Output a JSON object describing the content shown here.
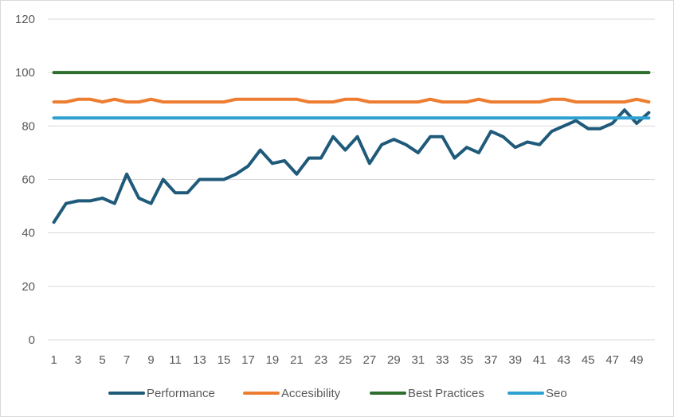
{
  "chart_data": {
    "type": "line",
    "title": "",
    "xlabel": "",
    "ylabel": "",
    "ylim": [
      0,
      120
    ],
    "yticks": [
      0,
      20,
      40,
      60,
      80,
      100,
      120
    ],
    "x": [
      1,
      2,
      3,
      4,
      5,
      6,
      7,
      8,
      9,
      10,
      11,
      12,
      13,
      14,
      15,
      16,
      17,
      18,
      19,
      20,
      21,
      22,
      23,
      24,
      25,
      26,
      27,
      28,
      29,
      30,
      31,
      32,
      33,
      34,
      35,
      36,
      37,
      38,
      39,
      40,
      41,
      42,
      43,
      44,
      45,
      46,
      47,
      48,
      49,
      50
    ],
    "xtick_labels": [
      "1",
      "3",
      "5",
      "7",
      "9",
      "11",
      "13",
      "15",
      "17",
      "19",
      "21",
      "23",
      "25",
      "27",
      "29",
      "31",
      "33",
      "35",
      "37",
      "39",
      "41",
      "43",
      "45",
      "47",
      "49"
    ],
    "grid": true,
    "legend_position": "bottom",
    "series": [
      {
        "name": "Performance",
        "color": "#1f5a7a",
        "values": [
          44,
          51,
          52,
          52,
          53,
          51,
          62,
          53,
          51,
          60,
          55,
          55,
          60,
          60,
          60,
          62,
          65,
          71,
          66,
          67,
          62,
          68,
          68,
          76,
          71,
          76,
          66,
          73,
          75,
          73,
          70,
          76,
          76,
          68,
          72,
          70,
          78,
          76,
          72,
          74,
          73,
          78,
          80,
          82,
          79,
          79,
          81,
          86,
          81,
          85
        ]
      },
      {
        "name": "Accesibility",
        "color": "#ed7d31",
        "values": [
          89,
          89,
          90,
          90,
          89,
          90,
          89,
          89,
          90,
          89,
          89,
          89,
          89,
          89,
          89,
          90,
          90,
          90,
          90,
          90,
          90,
          89,
          89,
          89,
          90,
          90,
          89,
          89,
          89,
          89,
          89,
          90,
          89,
          89,
          89,
          90,
          89,
          89,
          89,
          89,
          89,
          90,
          90,
          89,
          89,
          89,
          89,
          89,
          90,
          89
        ]
      },
      {
        "name": "Best Practices",
        "color": "#2e6f2e",
        "values": [
          100,
          100,
          100,
          100,
          100,
          100,
          100,
          100,
          100,
          100,
          100,
          100,
          100,
          100,
          100,
          100,
          100,
          100,
          100,
          100,
          100,
          100,
          100,
          100,
          100,
          100,
          100,
          100,
          100,
          100,
          100,
          100,
          100,
          100,
          100,
          100,
          100,
          100,
          100,
          100,
          100,
          100,
          100,
          100,
          100,
          100,
          100,
          100,
          100,
          100
        ]
      },
      {
        "name": "Seo",
        "color": "#2fa0d0",
        "values": [
          83,
          83,
          83,
          83,
          83,
          83,
          83,
          83,
          83,
          83,
          83,
          83,
          83,
          83,
          83,
          83,
          83,
          83,
          83,
          83,
          83,
          83,
          83,
          83,
          83,
          83,
          83,
          83,
          83,
          83,
          83,
          83,
          83,
          83,
          83,
          83,
          83,
          83,
          83,
          83,
          83,
          83,
          83,
          83,
          83,
          83,
          83,
          83,
          83,
          83
        ]
      }
    ]
  }
}
